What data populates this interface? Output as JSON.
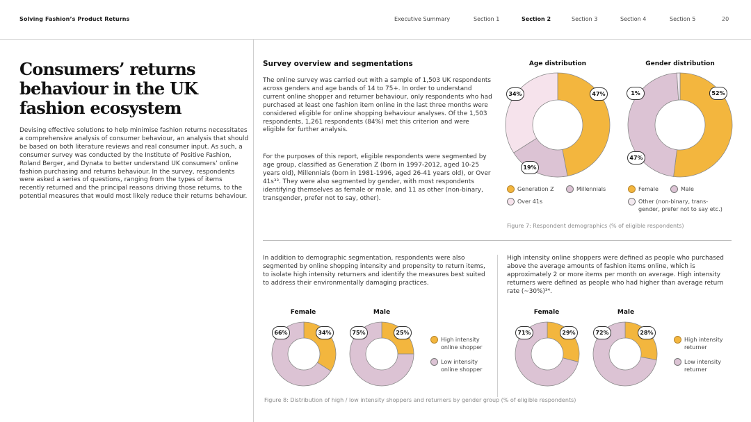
{
  "header": {
    "brand": "Solving Fashion’s Product Returns",
    "nav": [
      "Executive Summary",
      "Section 1",
      "Section 2",
      "Section 3",
      "Section 4",
      "Section 5"
    ],
    "active": "Section 2",
    "page_number": "20"
  },
  "left": {
    "title": "Consumers’ returns behaviour in the UK fashion ecosystem",
    "intro": "Devising effective solutions to help minimise fashion returns necessitates a comprehensive analysis of consumer behaviour, an analysis that should be based on both literature reviews and real consumer input. As such, a consumer survey was conducted by the Institute of Positive Fashion, Roland Berger, and Dynata to better understand UK consumers’ online fashion purchasing and returns behaviour. In the survey, respondents were asked a series of questions, ranging from the types of items recently returned and the principal reasons driving those returns, to the potential measures that would most likely reduce their returns behaviour."
  },
  "survey": {
    "heading": "Survey overview and segmentations",
    "para1": "The online survey was carried out with a sample of 1,503 UK respondents across genders and age bands of 14 to 75+. In order to understand current online shopper and returner behaviour, only respondents who had purchased at least one fashion item online in the last three months were considered eligible for online shopping behaviour analyses. Of the 1,503 respondents, 1,261 respondents (84%) met this criterion and were eligible for further analysis.",
    "para2": "For the purposes of this report, eligible respondents were segmented by age group, classified as Generation Z (born in 1997-2012, aged 10-25 years old), Millennials (born in 1981-1996, aged 26-41 years old), or Over 41s³³. They were also segmented by gender, with most respondents identifying themselves as female or male, and 11 as other (non-binary, transgender, prefer not to say, other).",
    "para3": "In addition to demographic segmentation, respondents were also segmented by online shopping intensity and propensity to return items, to isolate high intensity returners and identify the measures best suited to address their environmentally damaging practices.",
    "para4": "High intensity online shoppers were defined as people who purchased above the average amounts of fashion items online, which is approximately 2 or more items per month on average. High intensity returners were defined as people who had higher than average return rate (~30%)³⁴."
  },
  "colors": {
    "gold": "#F3B63E",
    "lilac": "#DCC3D4",
    "pale_pink": "#F6E3EC",
    "pale_lilac": "#F3EAF0"
  },
  "figure7": {
    "caption": "Figure 7: Respondent demographics (% of eligible respondents)",
    "age": {
      "title": "Age distribution",
      "labels": [
        "47%",
        "19%",
        "34%"
      ],
      "legend": [
        "Generation Z",
        "Millennials",
        "Over 41s"
      ]
    },
    "gender": {
      "title": "Gender distribution",
      "labels": [
        "52%",
        "47%",
        "1%"
      ],
      "legend": [
        "Female",
        "Male",
        "Other (non-binary, trans-",
        "gender, prefer not to say etc.)"
      ]
    }
  },
  "figure8": {
    "caption": "Figure 8: Distribution of high / low intensity shoppers and returners by gender group (% of eligible respondents)",
    "shoppers": {
      "female": {
        "title": "Female",
        "high": "34%",
        "low": "66%"
      },
      "male": {
        "title": "Male",
        "high": "25%",
        "low": "75%"
      },
      "legend_high": [
        "High intensity",
        "online shopper"
      ],
      "legend_low": [
        "Low intensity",
        "online shopper"
      ]
    },
    "returners": {
      "female": {
        "title": "Female",
        "high": "29%",
        "low": "71%"
      },
      "male": {
        "title": "Male",
        "high": "28%",
        "low": "72%"
      },
      "legend_high": [
        "High intensity",
        "returner"
      ],
      "legend_low": [
        "Low intensity",
        "returner"
      ]
    }
  },
  "chart_data": [
    {
      "type": "pie",
      "title": "Age distribution",
      "categories": [
        "Generation Z",
        "Millennials",
        "Over 41s"
      ],
      "values": [
        47,
        19,
        34
      ]
    },
    {
      "type": "pie",
      "title": "Gender distribution",
      "categories": [
        "Female",
        "Male",
        "Other (non-binary, transgender, prefer not to say etc.)"
      ],
      "values": [
        52,
        47,
        1
      ]
    },
    {
      "type": "pie",
      "title": "Female",
      "categories": [
        "High intensity online shopper",
        "Low intensity online shopper"
      ],
      "values": [
        34,
        66
      ]
    },
    {
      "type": "pie",
      "title": "Male",
      "categories": [
        "High intensity online shopper",
        "Low intensity online shopper"
      ],
      "values": [
        25,
        75
      ]
    },
    {
      "type": "pie",
      "title": "Female",
      "categories": [
        "High intensity returner",
        "Low intensity returner"
      ],
      "values": [
        29,
        71
      ]
    },
    {
      "type": "pie",
      "title": "Male",
      "categories": [
        "High intensity returner",
        "Low intensity returner"
      ],
      "values": [
        28,
        72
      ]
    }
  ]
}
